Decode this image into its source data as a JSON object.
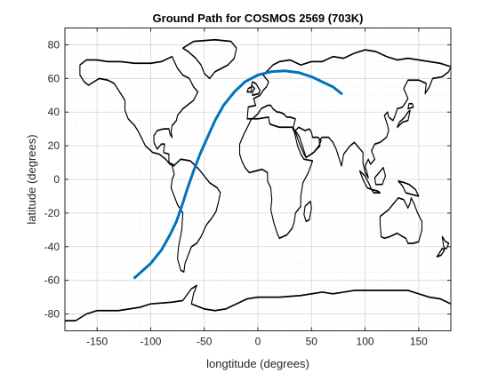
{
  "chart_data": {
    "type": "line",
    "title": "Ground Path for COSMOS 2569 (703K)",
    "xlabel": "longtitude (degrees)",
    "ylabel": "latitude (degrees)",
    "xlim": [
      -180,
      180
    ],
    "ylim": [
      -90,
      90
    ],
    "xticks": [
      -150,
      -100,
      -50,
      0,
      50,
      100,
      150
    ],
    "yticks": [
      -80,
      -60,
      -40,
      -20,
      0,
      20,
      40,
      60,
      80
    ],
    "grid": "major-and-minor",
    "colors": {
      "path": "#0072BD",
      "coastline": "#000000",
      "grid": "#dcdcdc"
    },
    "series": [
      {
        "x": [
          -115,
          -100,
          -90,
          -82,
          -76,
          -71,
          -66,
          -60,
          -54,
          -47,
          -40,
          -32,
          -22,
          -12,
          0,
          12,
          25,
          38,
          50,
          60,
          70,
          78
        ],
        "y": [
          -58.5,
          -50,
          -42,
          -33,
          -25,
          -16,
          -6,
          5,
          15,
          25,
          35,
          44,
          52,
          58,
          62,
          64,
          64.5,
          63.5,
          61,
          58,
          55,
          51
        ]
      }
    ]
  }
}
